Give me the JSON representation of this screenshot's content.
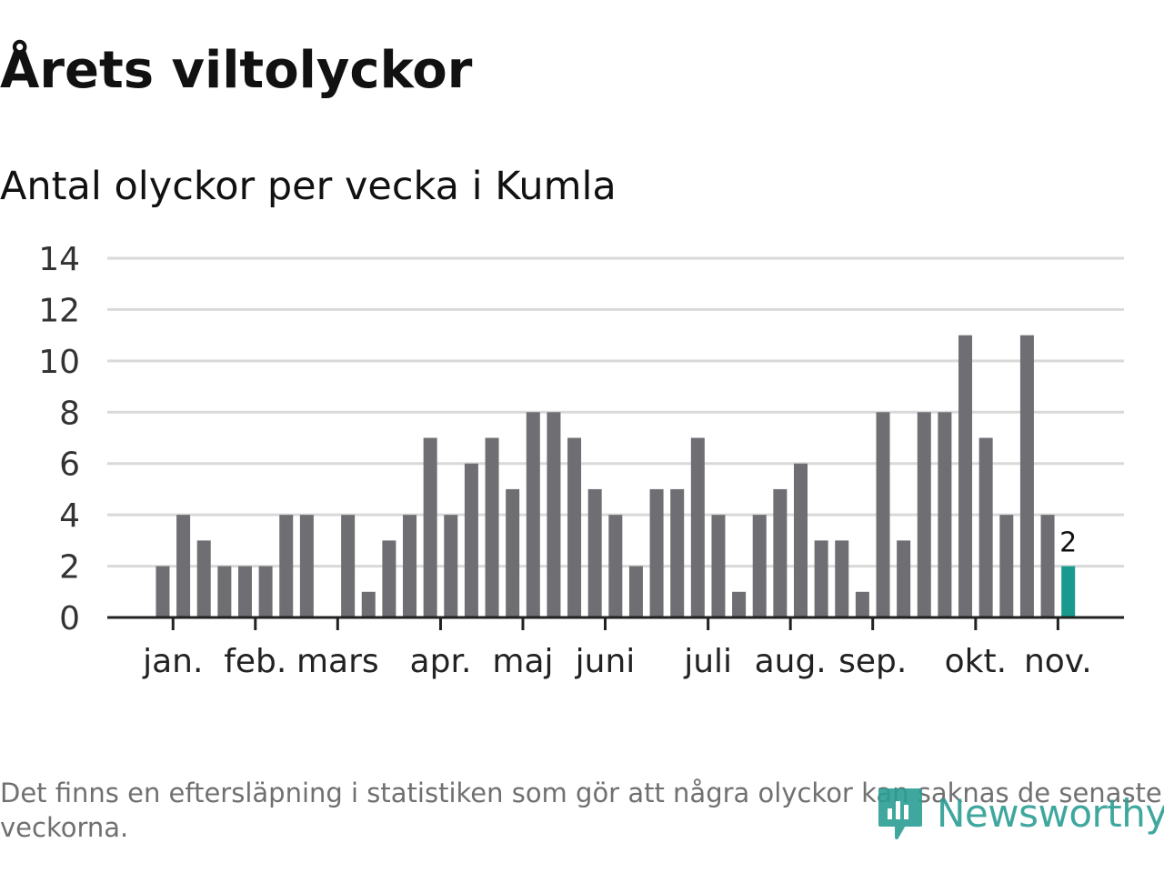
{
  "header": {
    "title": "Årets viltolyckor",
    "subtitle": "Antal olyckor per vecka i Kumla"
  },
  "footer": {
    "note": "Det finns en eftersläpning i statistiken som gör att några olyckor kan saknas de senaste veckorna.",
    "brand": "Newsworthy"
  },
  "colors": {
    "bar": "#6e6e73",
    "highlight": "#1a9a8e",
    "grid": "#d9d9d9",
    "axis": "#222222",
    "brand": "#2b9e94"
  },
  "chart_data": {
    "type": "bar",
    "title": "Årets viltolyckor",
    "subtitle": "Antal olyckor per vecka i Kumla",
    "xlabel": "",
    "ylabel": "",
    "ylim": [
      0,
      14
    ],
    "yticks": [
      0,
      2,
      4,
      6,
      8,
      10,
      12,
      14
    ],
    "grid": true,
    "week_slots": 48,
    "values": [
      0,
      0,
      2,
      4,
      3,
      2,
      2,
      2,
      4,
      4,
      0,
      4,
      1,
      3,
      4,
      7,
      4,
      6,
      7,
      5,
      8,
      8,
      7,
      5,
      4,
      2,
      5,
      5,
      7,
      4,
      1,
      4,
      5,
      6,
      3,
      3,
      1,
      8,
      3,
      8,
      8,
      11,
      7,
      4,
      11,
      4,
      2
    ],
    "highlight_index": 46,
    "highlight_label": "2",
    "month_labels": [
      {
        "label": "jan.",
        "at": 2.5
      },
      {
        "label": "feb.",
        "at": 6.5
      },
      {
        "label": "mars",
        "at": 10.5
      },
      {
        "label": "apr.",
        "at": 15.5
      },
      {
        "label": "maj",
        "at": 19.5
      },
      {
        "label": "juni",
        "at": 23.5
      },
      {
        "label": "juli",
        "at": 28.5
      },
      {
        "label": "aug.",
        "at": 32.5
      },
      {
        "label": "sep.",
        "at": 36.5
      },
      {
        "label": "okt.",
        "at": 41.5
      },
      {
        "label": "nov.",
        "at": 45.5
      }
    ]
  }
}
